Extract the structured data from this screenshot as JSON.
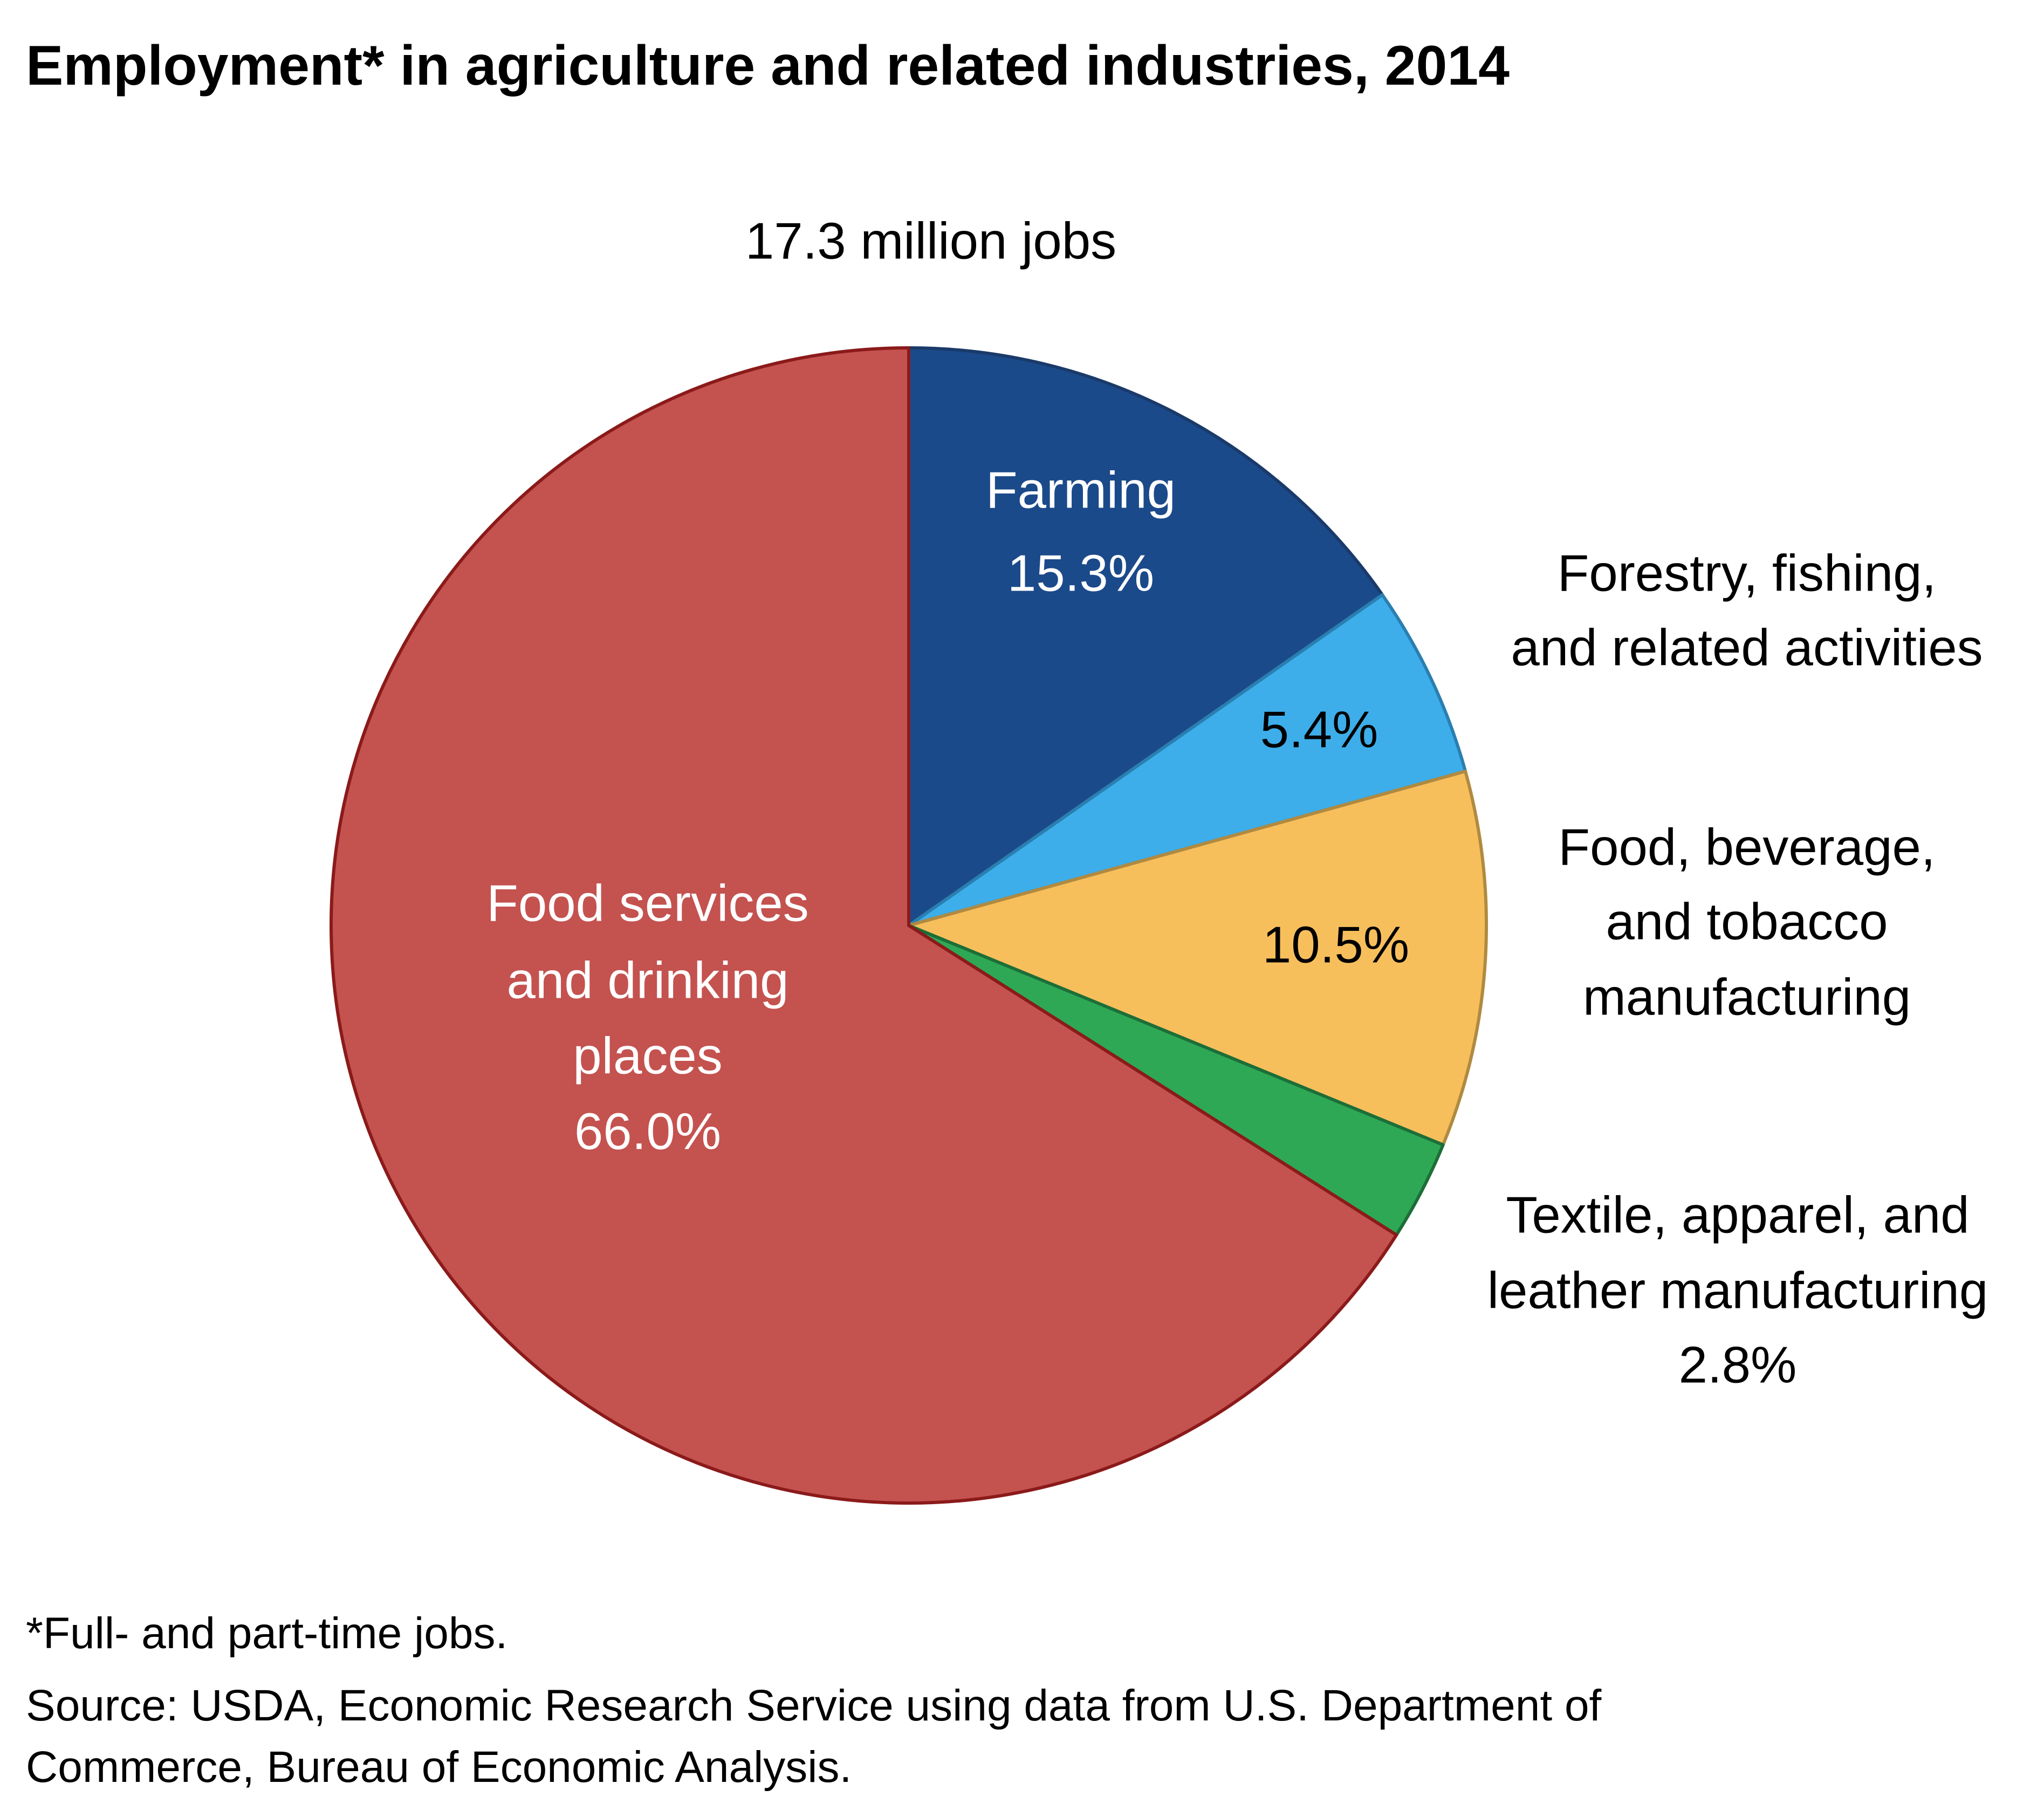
{
  "chart_data": {
    "type": "pie",
    "title": "Employment* in agriculture and related industries, 2014",
    "subtitle": "17.3 million jobs",
    "unit": "%",
    "slices": [
      {
        "label_lines": [
          "Farming"
        ],
        "value": 15.3,
        "value_label": "15.3%",
        "color": "#1B4A8A",
        "label_color": "#ffffff"
      },
      {
        "label_lines": [
          "Forestry, fishing,",
          "and related activities"
        ],
        "value": 5.4,
        "value_label": "5.4%",
        "color": "#3DAEEA",
        "label_color": "#000000"
      },
      {
        "label_lines": [
          "Food, beverage,",
          "and tobacco",
          "manufacturing"
        ],
        "value": 10.5,
        "value_label": "10.5%",
        "color": "#F7BF5C",
        "label_color": "#000000"
      },
      {
        "label_lines": [
          "Textile, apparel, and",
          "leather manufacturing"
        ],
        "value": 2.8,
        "value_label": "2.8%",
        "color": "#2EA855",
        "label_color": "#000000"
      },
      {
        "label_lines": [
          "Food services",
          "and drinking",
          "places"
        ],
        "value": 66.0,
        "value_label": "66.0%",
        "color": "#C4524F",
        "label_color": "#ffffff"
      }
    ],
    "start_angle": "top",
    "direction": "clockwise",
    "legend": "none (direct labels)"
  },
  "footnotes": [
    "*Full- and part-time jobs.",
    "Source: USDA, Economic Research Service using data from U.S. Department of",
    "Commerce, Bureau of Economic Analysis."
  ]
}
